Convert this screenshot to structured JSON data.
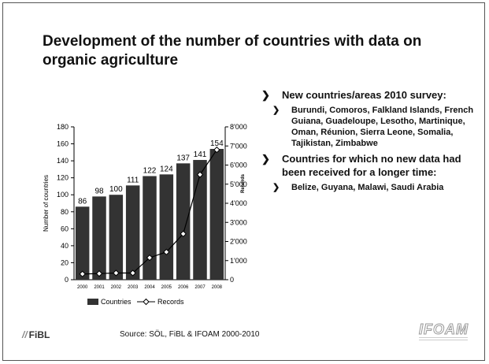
{
  "slide": {
    "title": "Development of the number of countries with data on organic agriculture",
    "source": "Source: SÖL, FiBL & IFOAM 2000-2010",
    "logo_left": "FiBL",
    "logo_right": "IFOAM"
  },
  "bullets": [
    {
      "text": "New countries/areas 2010 survey:",
      "sub": [
        "Burundi, Comoros, Falkland Islands, French Guiana, Guadeloupe, Lesotho, Martinique, Oman, Réunion, Sierra Leone, Somalia, Tajikistan, Zimbabwe"
      ]
    },
    {
      "text": "Countries for which no new data had been received for a longer time:",
      "sub": [
        "Belize, Guyana, Malawi, Saudi Arabia"
      ]
    }
  ],
  "chart_data": {
    "type": "bar",
    "categories": [
      "2000",
      "2001",
      "2002",
      "2003",
      "2004",
      "2005",
      "2006",
      "2007",
      "2008"
    ],
    "series": [
      {
        "name": "Countries",
        "type": "bar",
        "axis": "left",
        "color": "#333333",
        "values": [
          86,
          98,
          100,
          111,
          122,
          124,
          137,
          141,
          154
        ]
      },
      {
        "name": "Records",
        "type": "line",
        "axis": "right",
        "color": "#000000",
        "values": [
          300,
          320,
          350,
          350,
          1150,
          1450,
          2400,
          5500,
          6800
        ]
      }
    ],
    "ylabel": "Number of countries",
    "y2label": "Records",
    "ylim": [
      0,
      180
    ],
    "yticks": [
      "0",
      "20",
      "40",
      "60",
      "80",
      "100",
      "120",
      "140",
      "160",
      "180"
    ],
    "y2lim": [
      0,
      8000
    ],
    "y2ticks": [
      "0",
      "1'000",
      "2'000",
      "3'000",
      "4'000",
      "5'000",
      "6'000",
      "7'000",
      "8'000"
    ],
    "legend": "bottom",
    "grid": false,
    "data_labels": [
      "86",
      "98",
      "100",
      "111",
      "122",
      "124",
      "137",
      "141",
      "154"
    ]
  }
}
